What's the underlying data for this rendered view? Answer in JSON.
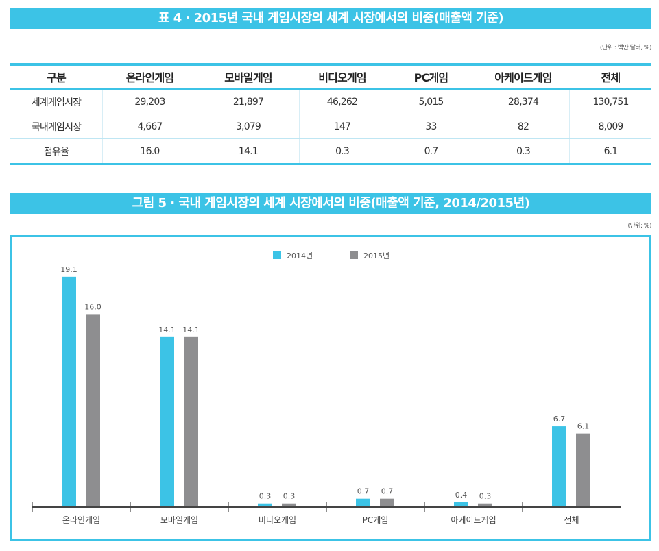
{
  "table": {
    "title": "표 4 · 2015년 국내 게임시장의 세계 시장에서의 비중(매출액 기준)",
    "unit": "(단위 : 백만 달러, %)",
    "headers": [
      "구분",
      "온라인게임",
      "모바일게임",
      "비디오게임",
      "PC게임",
      "아케이드게임",
      "전체"
    ],
    "rows": [
      [
        "세계게임시장",
        "29,203",
        "21,897",
        "46,262",
        "5,015",
        "28,374",
        "130,751"
      ],
      [
        "국내게임시장",
        "4,667",
        "3,079",
        "147",
        "33",
        "82",
        "8,009"
      ],
      [
        "점유율",
        "16.0",
        "14.1",
        "0.3",
        "0.7",
        "0.3",
        "6.1"
      ]
    ]
  },
  "figure": {
    "title": "그림 5 · 국내 게임시장의 세계 시장에서의 비중(매출액 기준, 2014/2015년)",
    "unit": "(단위: %)"
  },
  "colors": {
    "accent": "#3cc3e6",
    "series_2014": "#3cc3e6",
    "series_2015": "#8e8e90"
  },
  "chart_data": {
    "type": "bar",
    "categories": [
      "온라인게임",
      "모바일게임",
      "비디오게임",
      "PC게임",
      "아케이드게임",
      "전체"
    ],
    "series": [
      {
        "name": "2014년",
        "values": [
          19.1,
          14.1,
          0.3,
          0.7,
          0.4,
          6.7
        ],
        "labels": [
          "19.1",
          "14.1",
          "0.3",
          "0.7",
          "0.4",
          "6.7"
        ]
      },
      {
        "name": "2015년",
        "values": [
          16.0,
          14.1,
          0.3,
          0.7,
          0.3,
          6.1
        ],
        "labels": [
          "16.0",
          "14.1",
          "0.3",
          "0.7",
          "0.3",
          "6.1"
        ]
      }
    ],
    "ylim": [
      0,
      20
    ],
    "grid": false,
    "legend": "top-center",
    "xlabel": "",
    "ylabel": ""
  }
}
